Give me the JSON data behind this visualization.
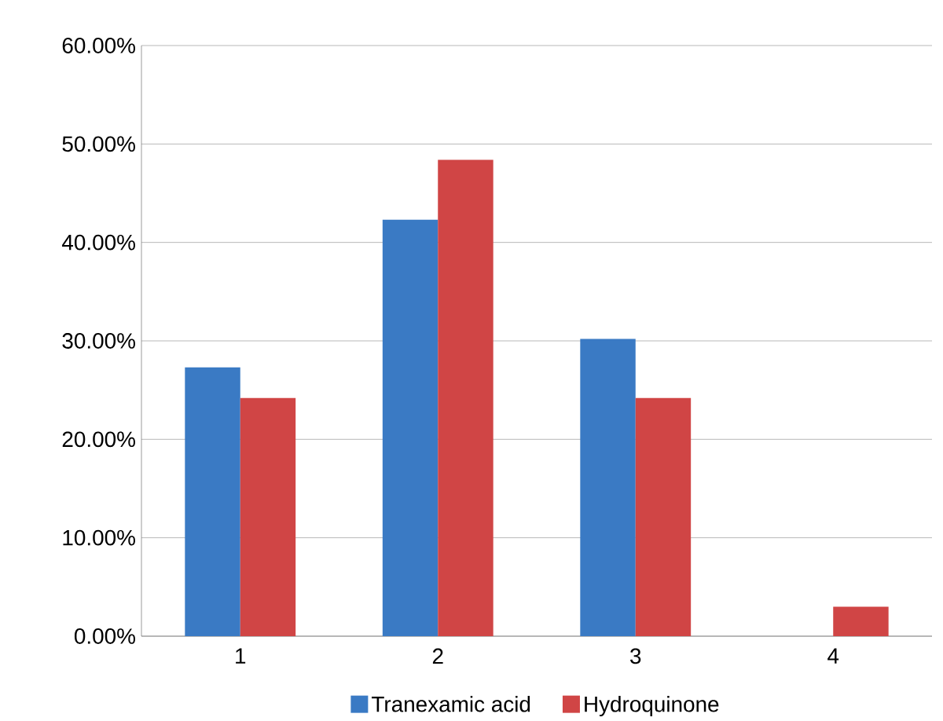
{
  "chart_data": {
    "type": "bar",
    "categories": [
      "1",
      "2",
      "3",
      "4"
    ],
    "series": [
      {
        "name": "Tranexamic acid",
        "color": "#3a7ac4",
        "values": [
          27.3,
          42.3,
          30.2,
          0
        ]
      },
      {
        "name": "Hydroquinone",
        "color": "#d04545",
        "values": [
          24.2,
          48.4,
          24.2,
          3.0
        ]
      }
    ],
    "ylim": [
      0,
      60
    ],
    "yticks": [
      {
        "value": 0,
        "label": "0.00%"
      },
      {
        "value": 10,
        "label": "10.00%"
      },
      {
        "value": 20,
        "label": "20.00%"
      },
      {
        "value": 30,
        "label": "30.00%"
      },
      {
        "value": 40,
        "label": "40.00%"
      },
      {
        "value": 50,
        "label": "50.00%"
      },
      {
        "value": 60,
        "label": "60.00%"
      }
    ],
    "grid": "y",
    "legend": "bottom"
  }
}
